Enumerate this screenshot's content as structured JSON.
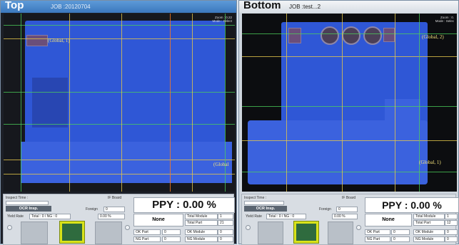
{
  "top": {
    "title": "Top",
    "job": "JOB :20120704",
    "zoom_label": "Zoom : 0.22",
    "mode_label": "Mode : Select",
    "markers": [
      "(Global, 1)",
      "(Global"
    ]
  },
  "bottom": {
    "title": "Bottom",
    "job": "JOB :test...2",
    "zoom_label": "Zoom : 0.",
    "mode_label": "Mode : Selec",
    "markers": [
      "(Global, 2)",
      "(Global, 1)"
    ]
  },
  "status": {
    "left": {
      "inspect_time_label": "Inspect Time :",
      "if_board_label": "IF Board",
      "ocr_label": "OCR Insp.",
      "foreign_label": "Foreign",
      "foreign_value": "0",
      "yield_rate_label": "Yield Rate",
      "total_ok_ng": "Total : 0 / NG : 0",
      "yield_value": "0.00 %",
      "ppy": "PPY : 0.00 %",
      "result": "None",
      "total_module_label": "Total Module",
      "total_module_value": "1",
      "total_part_label": "Total Part",
      "total_part_value": "21",
      "ok_part_label": "OK Part",
      "ok_part_value": "0",
      "ok_module_label": "OK Module",
      "ok_module_value": "0",
      "ng_part_label": "NG Part",
      "ng_part_value": "0",
      "ng_module_label": "NG Module",
      "ng_module_value": "0"
    },
    "right": {
      "inspect_time_label": "Inspect Time :",
      "if_board_label": "IF Board",
      "ocr_label": "OCR Insp.",
      "foreign_label": "Foreign",
      "foreign_value": "0",
      "yield_rate_label": "Yield Rate",
      "total_ok_ng": "Total : 0 / NG : 0",
      "yield_value": "0.00 %",
      "ppy": "PPY : 0.00 %",
      "result": "None",
      "total_module_label": "Total Module",
      "total_module_value": "1",
      "total_part_label": "Total Part",
      "total_part_value": "12",
      "ok_part_label": "OK Part",
      "ok_part_value": "0",
      "ok_module_label": "OK Module",
      "ok_module_value": "0",
      "ng_part_label": "NG Part",
      "ng_part_value": "0",
      "ng_module_label": "NG Module",
      "ng_module_value": "0"
    }
  },
  "colors": {
    "board_blue": "#2f57d6",
    "grid_yellow": "#e3c64a",
    "grid_green": "#4cd05a",
    "title_blue": "#3b78bd"
  }
}
